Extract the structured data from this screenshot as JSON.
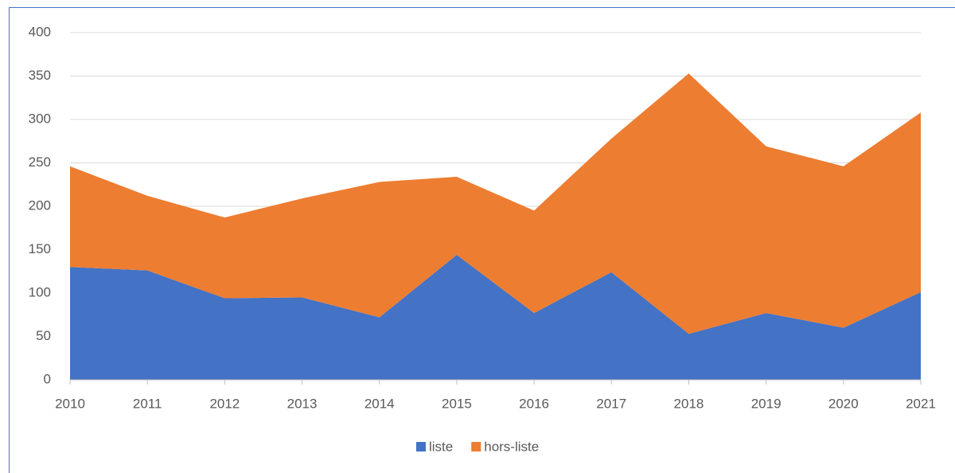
{
  "chart_data": {
    "type": "area",
    "stacked": true,
    "x": [
      2010,
      2011,
      2012,
      2013,
      2014,
      2015,
      2016,
      2017,
      2018,
      2019,
      2020,
      2021
    ],
    "xlim": [
      2010,
      2021
    ],
    "xticks": [
      2010,
      2011,
      2012,
      2013,
      2014,
      2015,
      2016,
      2017,
      2018,
      2019,
      2020,
      2021
    ],
    "ylim": [
      0,
      400
    ],
    "yticks": [
      0,
      50,
      100,
      150,
      200,
      250,
      300,
      350,
      400
    ],
    "grid": true,
    "legend": "bottom",
    "series": [
      {
        "name": "liste",
        "color": "#4472c4",
        "values": [
          130,
          126,
          94,
          95,
          72,
          144,
          77,
          124,
          53,
          77,
          60,
          101
        ]
      },
      {
        "name": "hors-liste",
        "color": "#ed7d31",
        "values": [
          116,
          86,
          93,
          114,
          156,
          90,
          118,
          154,
          300,
          192,
          186,
          207
        ]
      }
    ]
  }
}
